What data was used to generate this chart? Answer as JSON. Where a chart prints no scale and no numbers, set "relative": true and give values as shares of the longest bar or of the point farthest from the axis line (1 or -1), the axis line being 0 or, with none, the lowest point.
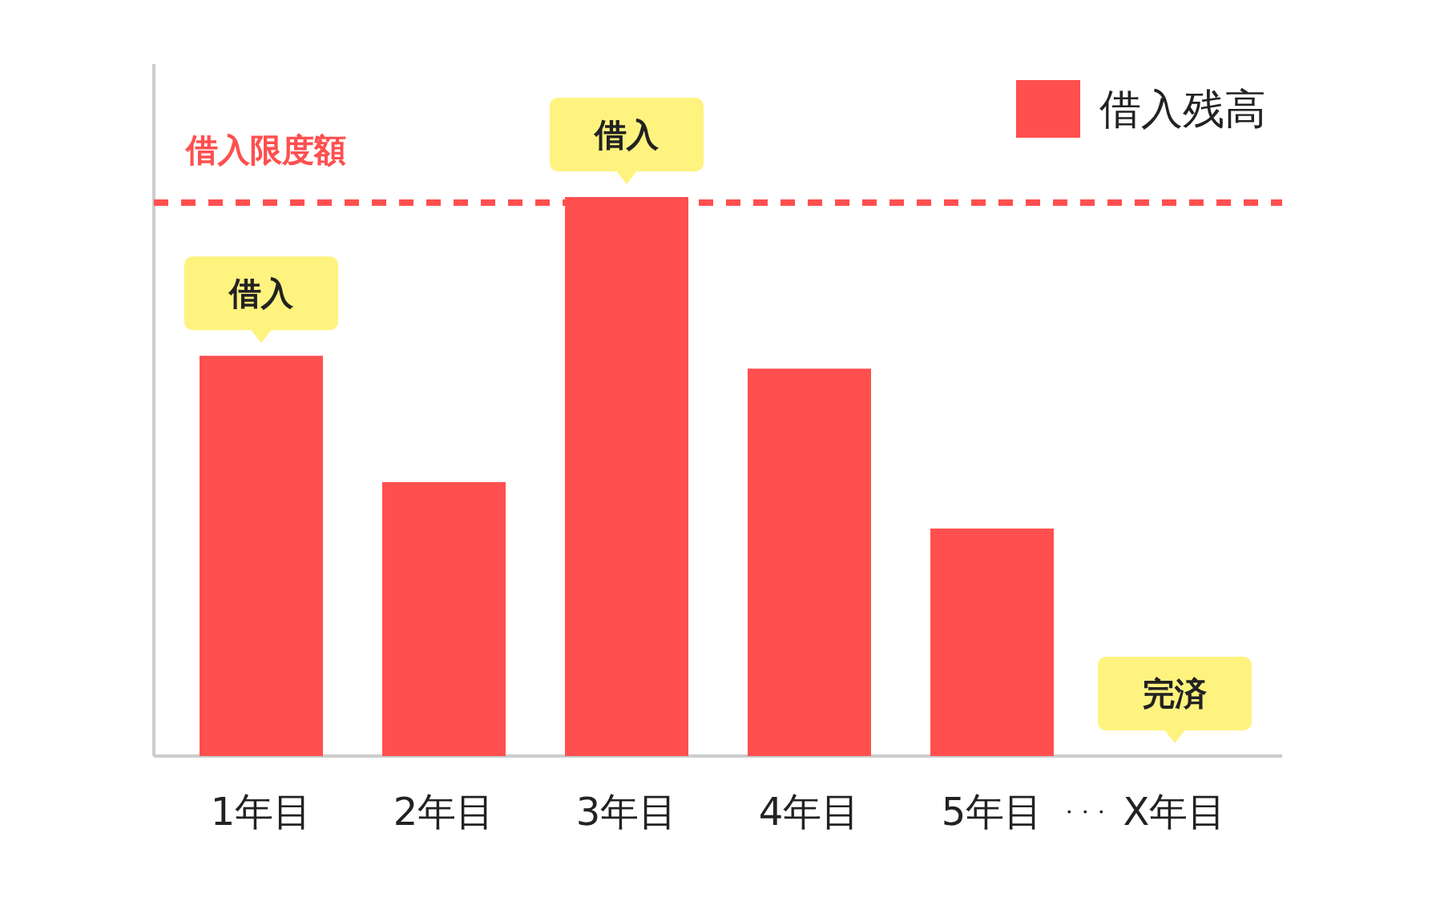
{
  "chart_data": {
    "type": "bar",
    "relative": true,
    "categories": [
      "1年目",
      "2年目",
      "3年目",
      "4年目",
      "5年目",
      "X年目"
    ],
    "series": [
      {
        "name": "借入残高",
        "color": "#ff4f4f",
        "values": [
          0.716,
          0.49,
          1,
          0.693,
          0.407,
          0
        ]
      }
    ],
    "ref_lines": [
      {
        "axis": "y",
        "value": 0.99,
        "label": "借入限度額",
        "color": "#ff4f4f",
        "line_style": "dashed"
      }
    ],
    "annotations": [
      {
        "text": "借入",
        "x": "1年目",
        "y": 0.716
      },
      {
        "text": "借入",
        "x": "3年目",
        "y": 1
      },
      {
        "text": "完済",
        "x": "X年目",
        "y": 0
      },
      "・・・"
    ],
    "legend": "top right"
  }
}
